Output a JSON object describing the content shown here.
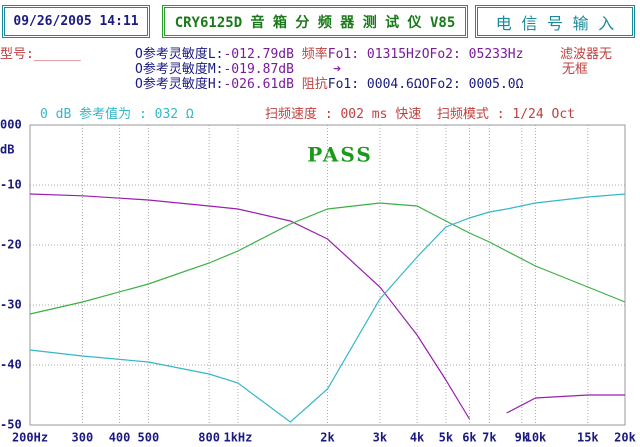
{
  "header": {
    "datetime": "09/26/2005 14:11",
    "title": "CRY6125D 音 箱 分 频 器 测 试 仪 V85",
    "input_button": "电 信 号 输 入",
    "model": "型号:______",
    "rows": [
      {
        "label": "O参考灵敏度L:",
        "value": "-012.79dB",
        "param_label": "频率",
        "param_value": "Fo1: 01315HzOFo2: 05233Hz"
      },
      {
        "label": "O参考灵敏度M:",
        "value": "-019.87dB",
        "param_label": "",
        "param_value": "➜"
      },
      {
        "label": "O参考灵敏度H:",
        "value": "-026.61dB",
        "param_label": "阻抗",
        "param_value": "Fo1: 0004.6ΩOFo2: 0005.0Ω"
      }
    ],
    "filter_status": [
      "滤波器无",
      "无框"
    ],
    "reference": "0 dB 参考值为 : 032 Ω",
    "sweep": "扫频速度 : 002 ms 快速  扫频模式 : 1/24 Oct"
  },
  "chart_data": {
    "type": "line",
    "annotation": "PASS",
    "y_unit": "dB",
    "x": [
      200,
      300,
      500,
      800,
      1000,
      1500,
      2000,
      3000,
      4000,
      5000,
      6000,
      7000,
      8000,
      10000,
      15000,
      20000
    ],
    "series": [
      {
        "color": "#9a1fb0",
        "values": [
          -11.5,
          -11.8,
          -12.5,
          -13.5,
          -14,
          -16,
          -19,
          -27,
          -35,
          -42.5,
          -49,
          null,
          -48,
          -45.5,
          -45,
          -45
        ]
      },
      {
        "color": "#3cb043",
        "values": [
          -31.5,
          -29.5,
          -26.5,
          -23,
          -21,
          -16.5,
          -14,
          -13,
          -13.5,
          -16,
          -18,
          -19.5,
          -21,
          -23.5,
          -27,
          -29.5
        ]
      },
      {
        "color": "#33b8c8",
        "values": [
          -37.5,
          -38.5,
          -39.5,
          -41.5,
          -43,
          -49.5,
          -44,
          -29,
          -22,
          -17,
          -15.5,
          -14.5,
          -14,
          -13,
          -12,
          -11.5
        ]
      }
    ],
    "xlim": [
      200,
      20000
    ],
    "xlog": true,
    "xticks": [
      {
        "value": 200,
        "label": "200Hz"
      },
      300,
      400,
      500,
      800,
      {
        "value": 1000,
        "label": "1kHz"
      },
      {
        "value": 2000,
        "label": "2k"
      },
      {
        "value": 3000,
        "label": "3k"
      },
      {
        "value": 4000,
        "label": "4k"
      },
      {
        "value": 5000,
        "label": "5k"
      },
      {
        "value": 6000,
        "label": "6k"
      },
      {
        "value": 7000,
        "label": "7k"
      },
      {
        "value": 9000,
        "label": "9k"
      },
      {
        "value": 10000,
        "label": "10k"
      },
      {
        "value": 15000,
        "label": "15k"
      },
      {
        "value": 20000,
        "label": "20k"
      }
    ],
    "ylim": [
      -50,
      0
    ],
    "yticks": [
      {
        "value": 0,
        "label": "000"
      },
      -10,
      -20,
      -30,
      -40,
      -50
    ],
    "grid": true
  }
}
